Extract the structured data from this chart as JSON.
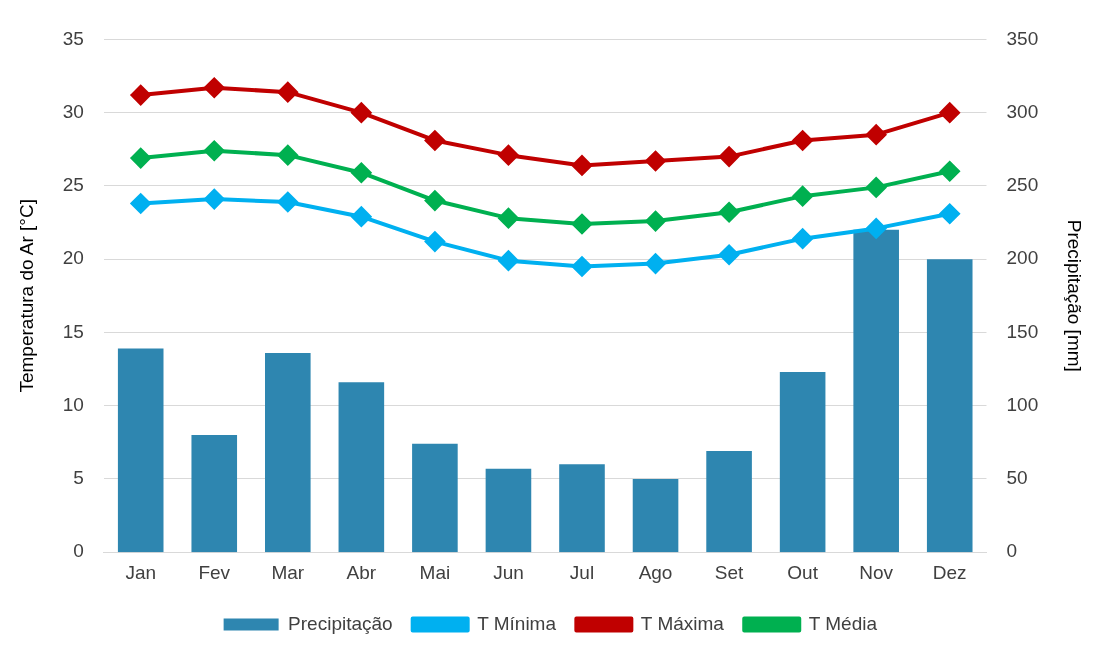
{
  "chart_data": {
    "type": "bar",
    "ylabel": "Temperatura do Ar [°C]",
    "y2label": "Precipitação [mm]",
    "categories": [
      "Jan",
      "Fev",
      "Mar",
      "Abr",
      "Mai",
      "Jun",
      "Jul",
      "Ago",
      "Set",
      "Out",
      "Nov",
      "Dez"
    ],
    "series": [
      {
        "name": "Precipitação",
        "axis": "y2",
        "color": "#2e86b0",
        "values": [
          139,
          80,
          136,
          116,
          74,
          57,
          60,
          50,
          69,
          123,
          220,
          200
        ]
      },
      {
        "name": "T Mínima",
        "type": "line",
        "color": "#00b0f0",
        "values": [
          23.8,
          24.1,
          23.9,
          22.9,
          21.2,
          19.9,
          19.5,
          19.7,
          20.3,
          21.4,
          22.1,
          23.1
        ]
      },
      {
        "name": "T Máxima",
        "type": "line",
        "color": "#c00000",
        "values": [
          31.2,
          31.7,
          31.4,
          30,
          28.1,
          27.1,
          26.4,
          26.7,
          27,
          28.1,
          28.5,
          30
        ]
      },
      {
        "name": "T Média",
        "type": "line",
        "color": "#00b050",
        "values": [
          26.9,
          27.4,
          27.1,
          25.9,
          24,
          22.8,
          22.4,
          22.6,
          23.2,
          24.3,
          24.9,
          26
        ]
      }
    ],
    "ylim": [
      0,
      35
    ],
    "yticks": [
      0,
      5,
      10,
      15,
      20,
      25,
      30,
      35
    ],
    "y2lim": [
      0,
      350
    ],
    "y2ticks": [
      0,
      50,
      100,
      150,
      200,
      250,
      300,
      350
    ],
    "grid": "y",
    "legend": "bottom",
    "marker": "diamond",
    "line_style": "solid"
  }
}
